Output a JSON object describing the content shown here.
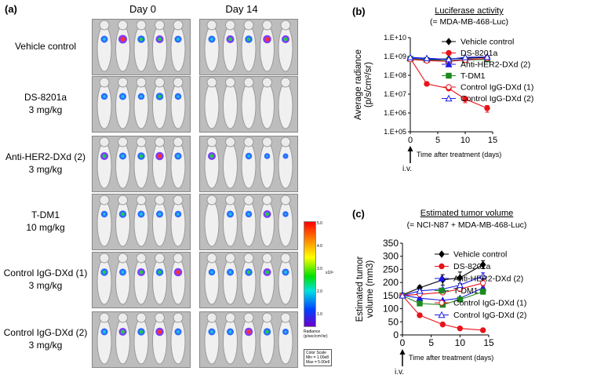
{
  "panel_a": {
    "label": "(a)",
    "days": [
      "Day 0",
      "Day 14"
    ],
    "groups": [
      {
        "name": "Vehicle control",
        "dose": ""
      },
      {
        "name": "DS-8201a",
        "dose": "3 mg/kg"
      },
      {
        "name": "Anti-HER2-DXd (2)",
        "dose": "3 mg/kg"
      },
      {
        "name": "T-DM1",
        "dose": "10 mg/kg"
      },
      {
        "name": "Control IgG-DXd (1)",
        "dose": "3 mg/kg"
      },
      {
        "name": "Control IgG-DXd (2)",
        "dose": "3 mg/kg"
      }
    ],
    "signal": {
      "day0": [
        [
          0.6,
          1,
          0.7,
          0.8,
          0.6
        ],
        [
          0.5,
          0.6,
          0.5,
          0.7,
          0.5
        ],
        [
          0.8,
          0.6,
          0.7,
          0.9,
          0.6
        ],
        [
          0.5,
          0.7,
          0.6,
          0.6,
          0.5
        ],
        [
          0.7,
          0.6,
          0.8,
          0.7,
          0.9
        ],
        [
          0.6,
          0.8,
          0.7,
          0.9,
          0.6
        ]
      ],
      "day14": [
        [
          0.6,
          0.8,
          0.7,
          0.9,
          0.8
        ],
        [
          0,
          0,
          0,
          0,
          0
        ],
        [
          0.8,
          0,
          0.5,
          0.3,
          0.2
        ],
        [
          0,
          0.6,
          0.5,
          0.8,
          0.3
        ],
        [
          0.5,
          0.6,
          0.7,
          0.8,
          0.6
        ],
        [
          0.6,
          0.6,
          0.9,
          0.7,
          0.4
        ]
      ]
    },
    "colorbar": {
      "ticks": [
        "5.0",
        "4.0",
        "3.0",
        "2.0",
        "1.0"
      ],
      "unit": "x10⁸",
      "radiance_label": "Radiance",
      "radiance_unit": "(p/sec/cm²/sr)",
      "scale_title": "Color Scale",
      "min": "Min = 1.00e8",
      "max": "Max = 5.00e9"
    }
  },
  "chart_data": [
    {
      "panel": "(b)",
      "type": "line",
      "title": "Luciferase activity",
      "subtitle": "(= MDA-MB-468-Luc)",
      "xlabel": "Time after treatment (days)",
      "ylabel_lines": [
        "Average radiance",
        "(p/s/cm²/sr)"
      ],
      "yscale": "log",
      "ylim": [
        100000,
        10000000000
      ],
      "xlim": [
        0,
        15
      ],
      "x_ticks": [
        0,
        5,
        10,
        15
      ],
      "y_tick_labels": [
        "1.E+05",
        "1.E+06",
        "1.E+07",
        "1.E+08",
        "1.E+09",
        "1.E+10"
      ],
      "annotation": "i.v.",
      "x": [
        0,
        3,
        7,
        10,
        14
      ],
      "series": [
        {
          "name": "Vehicle control",
          "color": "#000000",
          "marker": "diamond",
          "filled": true,
          "values": [
            800000000,
            700000000,
            750000000,
            800000000,
            900000000
          ],
          "err": [
            0,
            0,
            0,
            0,
            0
          ]
        },
        {
          "name": "DS-8201a",
          "color": "#e8131a",
          "marker": "circle",
          "filled": true,
          "values": [
            800000000,
            35000000,
            20000000,
            5500000,
            1800000
          ],
          "err": [
            0,
            0,
            4000000,
            2000000,
            700000
          ]
        },
        {
          "name": "Anti-HER2-DXd (2)",
          "color": "#1a1ae6",
          "marker": "triangle",
          "filled": true,
          "values": [
            800000000,
            700000000,
            600000000,
            700000000,
            750000000
          ],
          "err": [
            0,
            0,
            0,
            0,
            0
          ]
        },
        {
          "name": "T-DM1",
          "color": "#1c8a1c",
          "marker": "square",
          "filled": true,
          "values": [
            750000000,
            650000000,
            600000000,
            650000000,
            700000000
          ],
          "err": [
            0,
            0,
            0,
            0,
            0
          ]
        },
        {
          "name": "Control IgG-DXd (1)",
          "color": "#e8131a",
          "marker": "circle",
          "filled": false,
          "values": [
            700000000,
            600000000,
            550000000,
            650000000,
            800000000
          ],
          "err": [
            0,
            0,
            0,
            0,
            0
          ]
        },
        {
          "name": "Control IgG-DXd (2)",
          "color": "#1a1ae6",
          "marker": "triangle",
          "filled": false,
          "values": [
            900000000,
            800000000,
            700000000,
            900000000,
            950000000
          ],
          "err": [
            0,
            0,
            0,
            0,
            0
          ]
        }
      ]
    },
    {
      "panel": "(c)",
      "type": "line",
      "title": "Estimated tumor volume",
      "subtitle": "(= NCI-N87 + MDA-MB-468-Luc)",
      "xlabel": "Time after treatment (days)",
      "ylabel_lines": [
        "Estimated tumor",
        "volume (mm3)"
      ],
      "yscale": "linear",
      "ylim": [
        0,
        350
      ],
      "xlim": [
        0,
        15
      ],
      "x_ticks": [
        0,
        5,
        10,
        15
      ],
      "y_ticks": [
        0,
        50,
        100,
        150,
        200,
        250,
        300,
        350
      ],
      "annotation": "i.v.",
      "x": [
        0,
        3,
        7,
        10,
        14
      ],
      "series": [
        {
          "name": "Vehicle control",
          "color": "#000000",
          "marker": "diamond",
          "filled": true,
          "values": [
            152,
            180,
            210,
            218,
            268
          ],
          "err": [
            0,
            8,
            20,
            22,
            15
          ]
        },
        {
          "name": "DS-8201a",
          "color": "#e8131a",
          "marker": "circle",
          "filled": true,
          "values": [
            150,
            75,
            40,
            25,
            18
          ],
          "err": [
            0,
            0,
            0,
            0,
            0
          ]
        },
        {
          "name": "Anti-HER2-DXd (2)",
          "color": "#1a1ae6",
          "marker": "triangle",
          "filled": true,
          "values": [
            152,
            140,
            132,
            140,
            180
          ],
          "err": [
            0,
            0,
            0,
            0,
            10
          ]
        },
        {
          "name": "T-DM1",
          "color": "#1c8a1c",
          "marker": "square",
          "filled": true,
          "values": [
            150,
            120,
            115,
            135,
            165
          ],
          "err": [
            0,
            0,
            0,
            0,
            10
          ]
        },
        {
          "name": "Control IgG-DXd (1)",
          "color": "#e8131a",
          "marker": "circle",
          "filled": false,
          "values": [
            150,
            155,
            162,
            175,
            198
          ],
          "err": [
            0,
            0,
            0,
            0,
            12
          ]
        },
        {
          "name": "Control IgG-DXd (2)",
          "color": "#1a1ae6",
          "marker": "triangle",
          "filled": false,
          "values": [
            150,
            168,
            175,
            190,
            225
          ],
          "err": [
            0,
            0,
            0,
            0,
            12
          ]
        }
      ]
    }
  ]
}
